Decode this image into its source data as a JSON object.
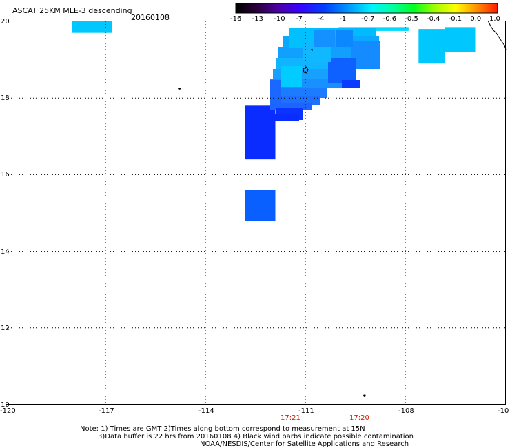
{
  "header": {
    "title": "ASCAT 25KM MLE-3 descending",
    "date": "20160108"
  },
  "colorbar": {
    "labels": [
      "-16",
      "-13",
      "-10",
      "-7",
      "-4",
      "-1",
      "-0.7",
      "-0.6",
      "-0.5",
      "-0.4",
      "-0.1",
      "0.0",
      "1.0"
    ]
  },
  "map": {
    "lat_labels": [
      "20",
      "18",
      "16",
      "14",
      "12",
      "10"
    ],
    "lon_labels": [
      "-120",
      "-117",
      "-114",
      "-111",
      "-108",
      "-10"
    ],
    "time_labels": [
      "17:21",
      "17:20"
    ],
    "lat_range": [
      10,
      20
    ],
    "lon_range": [
      -120,
      -105
    ],
    "cells": [
      {
        "lon0": -118.0,
        "lon1": -116.8,
        "lat0": 19.7,
        "lat1": 20.0,
        "color": "#00c8ff"
      },
      {
        "lon0": -110.0,
        "lon1": -107.9,
        "lat0": 19.75,
        "lat1": 19.85,
        "color": "#00d8ff"
      },
      {
        "lon0": -107.6,
        "lon1": -106.8,
        "lat0": 18.9,
        "lat1": 19.8,
        "color": "#00c8ff"
      },
      {
        "lon0": -106.8,
        "lon1": -105.9,
        "lat0": 19.2,
        "lat1": 19.85,
        "color": "#00c8ff"
      },
      {
        "lon0": -112.8,
        "lon1": -111.9,
        "lat0": 17.1,
        "lat1": 17.8,
        "color": "#0a2cff"
      },
      {
        "lon0": -112.8,
        "lon1": -111.9,
        "lat0": 16.4,
        "lat1": 17.3,
        "color": "#0a2cff"
      },
      {
        "lon0": -112.8,
        "lon1": -111.9,
        "lat0": 14.8,
        "lat1": 15.6,
        "color": "#0a60ff"
      }
    ]
  },
  "notes": {
    "line1": "Note: 1) Times are GMT 2)Times along bottom correspond to measurement at 15N",
    "line2": "3)Data buffer is 22 hrs from 20160108 4) Black wind barbs indicate possible contamination",
    "line3": "NOAA/NESDIS/Center for Satellite Applications and Research"
  }
}
